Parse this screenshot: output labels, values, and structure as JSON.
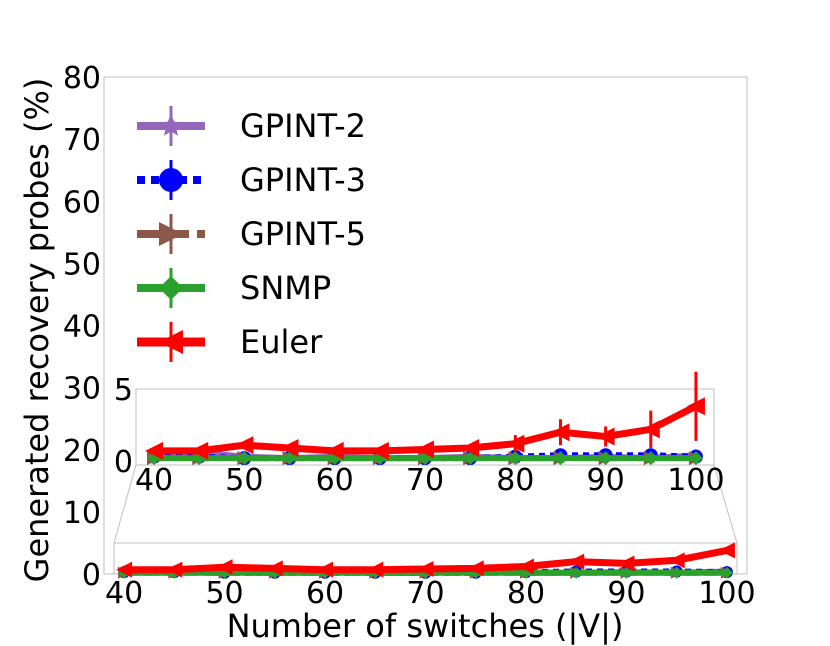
{
  "chart_data": {
    "type": "line",
    "xlabel": "Number of switches (|V|)",
    "ylabel": "Generated recovery probes (%)",
    "xlim": [
      38,
      102
    ],
    "ylim": [
      0,
      80
    ],
    "x": [
      40,
      45,
      50,
      55,
      60,
      65,
      70,
      75,
      80,
      85,
      90,
      95,
      100
    ],
    "x_ticks": [
      "40",
      "50",
      "60",
      "70",
      "80",
      "90",
      "100"
    ],
    "y_ticks": [
      "0",
      "10",
      "20",
      "30",
      "40",
      "50",
      "60",
      "70",
      "80"
    ],
    "legend_position": "upper-left",
    "grid": false,
    "series": [
      {
        "name": "GPINT-2",
        "color": "#9467bd",
        "marker": "star",
        "values": [
          0.5,
          0.6,
          0.3,
          0.2,
          0.3,
          0.2,
          0.2,
          0.3,
          0.2,
          0.2,
          0.3,
          0.2,
          0.4
        ]
      },
      {
        "name": "GPINT-3",
        "color": "#0000ff",
        "marker": "circle",
        "values": [
          0.3,
          0.3,
          0.2,
          0.2,
          0.2,
          0.2,
          0.2,
          0.2,
          0.3,
          0.4,
          0.4,
          0.4,
          0.3
        ]
      },
      {
        "name": "GPINT-5",
        "color": "#8c564b",
        "marker": "triangle-right",
        "values": [
          0.2,
          0.2,
          0.2,
          0.2,
          0.2,
          0.2,
          0.2,
          0.2,
          0.2,
          0.2,
          0.2,
          0.2,
          0.2
        ]
      },
      {
        "name": "SNMP",
        "color": "#2ca02c",
        "marker": "diamond",
        "values": [
          0.2,
          0.2,
          0.2,
          0.2,
          0.2,
          0.2,
          0.2,
          0.2,
          0.2,
          0.2,
          0.2,
          0.2,
          0.2
        ]
      },
      {
        "name": "Euler",
        "color": "#ff0000",
        "marker": "triangle-left",
        "values": [
          0.7,
          0.7,
          1.1,
          0.9,
          0.7,
          0.7,
          0.8,
          0.9,
          1.2,
          2.0,
          1.7,
          2.2,
          3.8
        ],
        "errors": [
          0.0,
          0.0,
          0.0,
          0.0,
          0.0,
          0.0,
          0.0,
          0.0,
          0.6,
          0.9,
          0.7,
          1.3,
          2.4
        ]
      }
    ],
    "inset": {
      "xlim": [
        38,
        102
      ],
      "ylim": [
        0,
        5
      ],
      "x_ticks": [
        "40",
        "50",
        "60",
        "70",
        "80",
        "90",
        "100"
      ],
      "y_ticks": [
        "0",
        "5"
      ]
    }
  }
}
